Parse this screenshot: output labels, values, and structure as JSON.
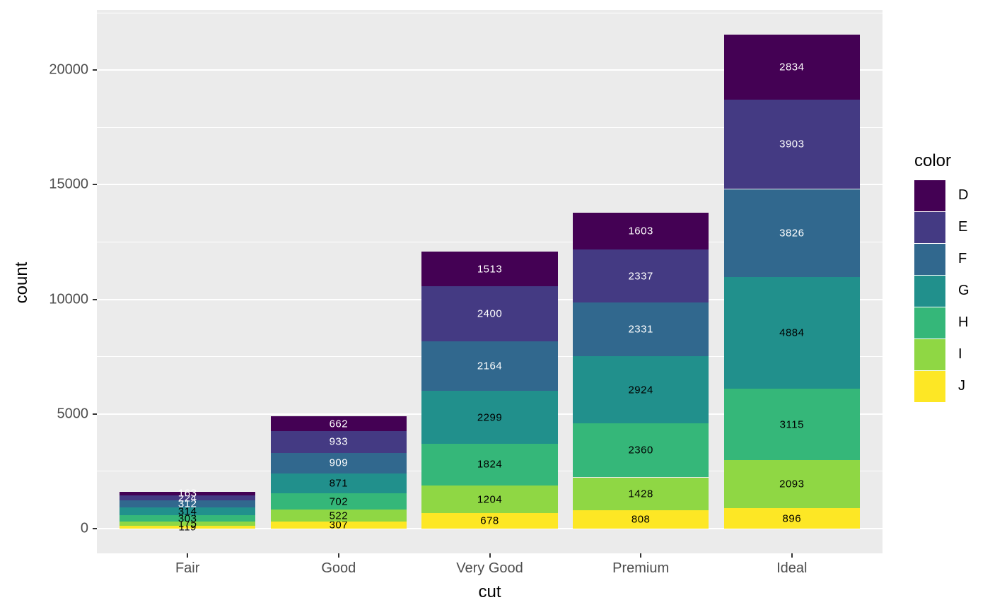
{
  "chart_data": {
    "type": "bar",
    "stacked": true,
    "title": "",
    "xlabel": "cut",
    "ylabel": "count",
    "legend_title": "color",
    "legend_position": "right",
    "categories": [
      "Fair",
      "Good",
      "Very Good",
      "Premium",
      "Ideal"
    ],
    "series": [
      {
        "name": "D",
        "color": "#440154",
        "label_color": "#FFFFFF",
        "values": [
          163,
          662,
          1513,
          1603,
          2834
        ]
      },
      {
        "name": "E",
        "color": "#443A83",
        "label_color": "#FFFFFF",
        "values": [
          224,
          933,
          2400,
          2337,
          3903
        ]
      },
      {
        "name": "F",
        "color": "#31688E",
        "label_color": "#FFFFFF",
        "values": [
          312,
          909,
          2164,
          2331,
          3826
        ]
      },
      {
        "name": "G",
        "color": "#21908C",
        "label_color": "#000000",
        "values": [
          314,
          871,
          2299,
          2924,
          4884
        ]
      },
      {
        "name": "H",
        "color": "#35B779",
        "label_color": "#000000",
        "values": [
          303,
          702,
          1824,
          2360,
          3115
        ]
      },
      {
        "name": "I",
        "color": "#8FD744",
        "label_color": "#000000",
        "values": [
          175,
          522,
          1204,
          1428,
          2093
        ]
      },
      {
        "name": "J",
        "color": "#FDE725",
        "label_color": "#000000",
        "values": [
          119,
          307,
          678,
          808,
          896
        ]
      }
    ],
    "stack_order": "first_series_on_top",
    "y_ticks": [
      0,
      5000,
      10000,
      15000,
      20000
    ],
    "y_tick_labels": [
      "0",
      "5000",
      "10000",
      "15000",
      "20000"
    ],
    "y_minor_ticks": [
      2500,
      7500,
      12500,
      17500,
      22500
    ],
    "ylim": [
      -1078,
      22629
    ],
    "grid": true,
    "panel_bg": "#EBEBEB",
    "grid_color": "#FFFFFF",
    "axis_text_color": "#4D4D4D",
    "bar_width_fraction": 0.9
  }
}
